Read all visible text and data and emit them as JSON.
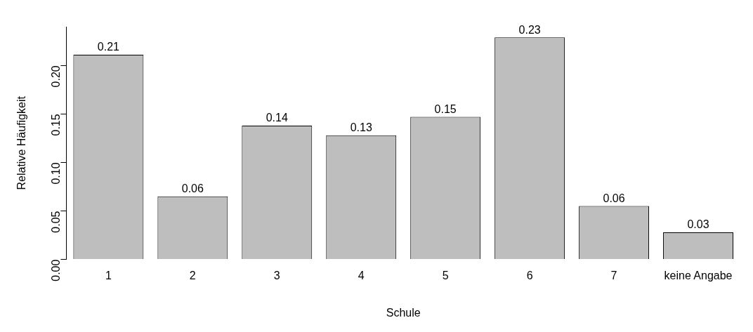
{
  "chart_data": {
    "type": "bar",
    "xlabel": "Schule",
    "ylabel": "Relative Häufigkeit",
    "categories": [
      "1",
      "2",
      "3",
      "4",
      "5",
      "6",
      "7",
      "keine Angabe"
    ],
    "values": [
      0.211,
      0.065,
      0.138,
      0.128,
      0.147,
      0.229,
      0.055,
      0.028
    ],
    "value_labels": [
      "0.21",
      "0.06",
      "0.14",
      "0.13",
      "0.15",
      "0.23",
      "0.06",
      "0.03"
    ],
    "color": "#bebebe",
    "ylim": [
      0,
      0.24
    ],
    "yticks": [
      {
        "value": 0,
        "label": "0.00"
      },
      {
        "value": 0.05,
        "label": "0.05"
      },
      {
        "value": 0.1,
        "label": "0.10"
      },
      {
        "value": 0.15,
        "label": "0.15"
      },
      {
        "value": 0.2,
        "label": "0.20"
      }
    ],
    "grid": false,
    "legend": false
  }
}
